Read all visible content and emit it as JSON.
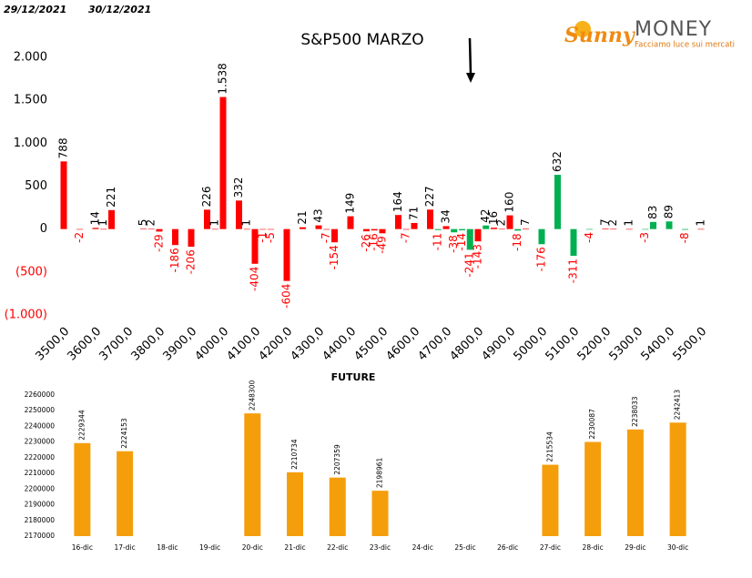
{
  "header": {
    "date_left": "29/12/2021",
    "date_right": "30/12/2021"
  },
  "logo": {
    "brand_a": "Sunny",
    "brand_b": "MONEY",
    "tagline": "Facciamo luce sui mercati"
  },
  "chart_data": [
    {
      "type": "bar",
      "title": "S&P500 MARZO",
      "x": [
        3500,
        3550,
        3600,
        3625,
        3650,
        3750,
        3775,
        3800,
        3850,
        3900,
        3950,
        3975,
        4000,
        4050,
        4075,
        4100,
        4125,
        4150,
        4200,
        4250,
        4300,
        4325,
        4350,
        4400,
        4450,
        4475,
        4500,
        4550,
        4575,
        4600,
        4650,
        4675,
        4700,
        4725,
        4750,
        4775,
        4800,
        4825,
        4850,
        4875,
        4900,
        4925,
        4950,
        5000,
        5050,
        5100,
        5150,
        5200,
        5225,
        5275,
        5325,
        5350,
        5400,
        5450,
        5500
      ],
      "values": [
        788,
        -2,
        14,
        1,
        221,
        5,
        2,
        -29,
        -186,
        -206,
        226,
        1,
        1538,
        332,
        1,
        -404,
        -1,
        -5,
        -604,
        21,
        43,
        -7,
        -154,
        149,
        -26,
        -16,
        -49,
        164,
        -7,
        71,
        227,
        -11,
        34,
        -38,
        -14,
        -241,
        -143,
        42,
        16,
        2,
        160,
        -18,
        7,
        -176,
        632,
        -311,
        -4,
        7,
        2,
        1,
        -3,
        83,
        89,
        -8,
        1
      ],
      "value_labels": [
        "788",
        "-2",
        "14",
        "1",
        "221",
        "5",
        "2",
        "-29",
        "-186",
        "-206",
        "226",
        "1",
        "1.538",
        "332",
        "1",
        "-404",
        "-1",
        "-5",
        "-604",
        "21",
        "43",
        "-7",
        "-154",
        "149",
        "-26",
        "-16",
        "-49",
        "164",
        "-7",
        "71",
        "227",
        "-11",
        "34",
        "-38",
        "-14",
        "-241",
        "-143",
        "42",
        "16",
        "2",
        "160",
        "-18",
        "7",
        "-176",
        "632",
        "-311",
        "-4",
        "7",
        "2",
        "1",
        "-3",
        "83",
        "89",
        "-8",
        "1"
      ],
      "colors": [
        "#ff0000",
        "#ff0000",
        "#ff0000",
        "#ff0000",
        "#ff0000",
        "#ff0000",
        "#ff0000",
        "#ff0000",
        "#ff0000",
        "#ff0000",
        "#ff0000",
        "#ff0000",
        "#ff0000",
        "#ff0000",
        "#ff0000",
        "#ff0000",
        "#ff0000",
        "#ff0000",
        "#ff0000",
        "#ff0000",
        "#ff0000",
        "#ff0000",
        "#ff0000",
        "#ff0000",
        "#ff0000",
        "#ff0000",
        "#ff0000",
        "#ff0000",
        "#ff0000",
        "#ff0000",
        "#ff0000",
        "#00b050",
        "#ff0000",
        "#00b050",
        "#00b050",
        "#00b050",
        "#ff0000",
        "#00b050",
        "#ff0000",
        "#ff0000",
        "#ff0000",
        "#00b050",
        "#ff0000",
        "#00b050",
        "#00b050",
        "#00b050",
        "#00b050",
        "#ff0000",
        "#ff0000",
        "#ff0000",
        "#00b050",
        "#00b050",
        "#00b050",
        "#00b050",
        "#ff0000"
      ],
      "negative_label_color": "#ff0000",
      "xlim": [
        3500,
        5500
      ],
      "xticks": [
        {
          "value": 3500,
          "label": "3500,0"
        },
        {
          "value": 3600,
          "label": "3600,0"
        },
        {
          "value": 3700,
          "label": "3700,0"
        },
        {
          "value": 3800,
          "label": "3800,0"
        },
        {
          "value": 3900,
          "label": "3900,0"
        },
        {
          "value": 4000,
          "label": "4000,0"
        },
        {
          "value": 4100,
          "label": "4100,0"
        },
        {
          "value": 4200,
          "label": "4200,0"
        },
        {
          "value": 4300,
          "label": "4300,0"
        },
        {
          "value": 4400,
          "label": "4400,0"
        },
        {
          "value": 4500,
          "label": "4500,0"
        },
        {
          "value": 4600,
          "label": "4600,0"
        },
        {
          "value": 4700,
          "label": "4700,0"
        },
        {
          "value": 4800,
          "label": "4800,0"
        },
        {
          "value": 4900,
          "label": "4900,0"
        },
        {
          "value": 5000,
          "label": "5000,0"
        },
        {
          "value": 5100,
          "label": "5100,0"
        },
        {
          "value": 5200,
          "label": "5200,0"
        },
        {
          "value": 5300,
          "label": "5300,0"
        },
        {
          "value": 5400,
          "label": "5400,0"
        },
        {
          "value": 5500,
          "label": "5500,0"
        }
      ],
      "ylim": [
        -1000,
        2000
      ],
      "yticks": [
        {
          "value": 2000,
          "label": "2.000"
        },
        {
          "value": 1500,
          "label": "1.500"
        },
        {
          "value": 1000,
          "label": "1.000"
        },
        500,
        0,
        {
          "value": -500,
          "label": "(500)"
        },
        {
          "value": -1000,
          "label": "(1.000)"
        }
      ]
    },
    {
      "type": "bar",
      "title": "FUTURE",
      "categories": [
        "16-dic",
        "17-dic",
        "18-dic",
        "19-dic",
        "20-dic",
        "21-dic",
        "22-dic",
        "23-dic",
        "24-dic",
        "25-dic",
        "26-dic",
        "27-dic",
        "28-dic",
        "29-dic",
        "30-dic"
      ],
      "values": [
        2229344,
        2224153,
        null,
        null,
        2248300,
        2210734,
        2207359,
        2198961,
        null,
        null,
        null,
        2215534,
        2230087,
        2238033,
        2242413
      ],
      "color": "#f59e0b",
      "ylim": [
        2170000,
        2260000
      ],
      "yticks": [
        2170000,
        2180000,
        2190000,
        2200000,
        2210000,
        2220000,
        2230000,
        2240000,
        2250000,
        2260000
      ]
    }
  ]
}
